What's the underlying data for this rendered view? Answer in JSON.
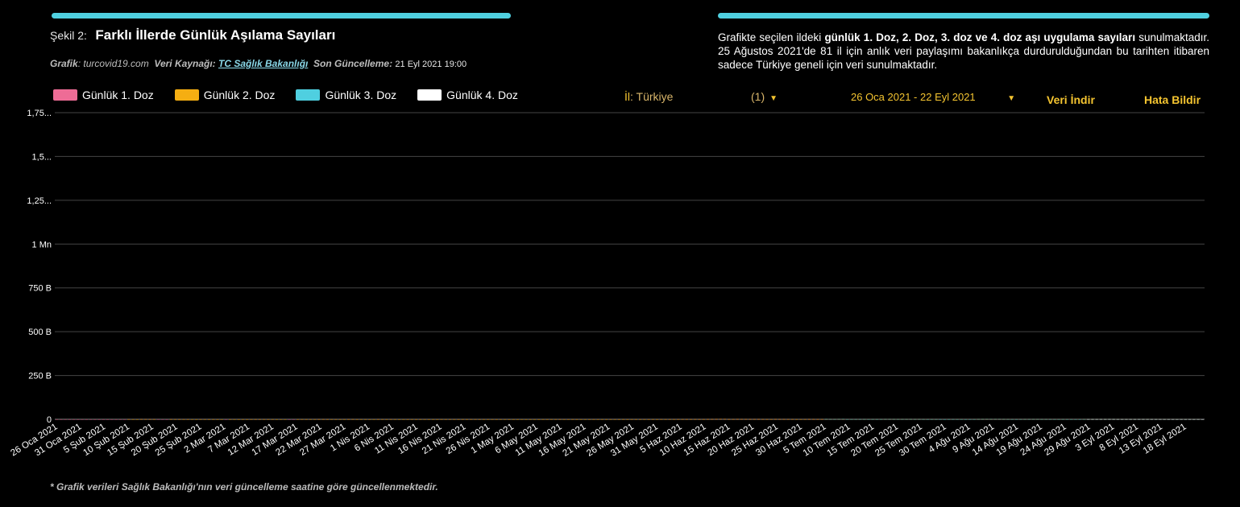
{
  "header": {
    "fig_no": "Şekil 2:",
    "title": "Farklı İllerde  Günlük Aşılama  Sayıları",
    "meta_graph_label": "Grafik",
    "meta_graph_value": ": turcovid19.com",
    "meta_source_label": "Veri Kaynağı:",
    "meta_source_link": "TC Sağlık Bakanlığı",
    "meta_update_label": "Son Güncelleme:",
    "meta_update_value": "21 Eyl 2021 19:00"
  },
  "description": {
    "part1": "Grafikte seçilen ildeki ",
    "bold": "günlük 1. Doz, 2. Doz, 3. doz ve 4. doz aşı uygulama sayıları",
    "part2": " sunulmaktadır.  25 Ağustos 2021'de 81 il için anlık veri paylaşımı bakanlıkça durdurulduğundan bu tarihten  itibaren sadece Türkiye geneli için veri sunulmaktadır."
  },
  "legend": [
    {
      "label": "Günlük 1. Doz",
      "color": "#ee6c96"
    },
    {
      "label": "Günlük 2. Doz",
      "color": "#f5ae12"
    },
    {
      "label": "Günlük 3. Doz",
      "color": "#4fcfe0"
    },
    {
      "label": "Günlük 4. Doz",
      "color": "#ffffff"
    }
  ],
  "controls": {
    "il_label": "İl",
    "il_value": ": Türkiye",
    "count": "(1)",
    "date_range": "26 Oca 2021 - 22 Eyl 2021",
    "download": "Veri İndir",
    "report": "Hata Bildir"
  },
  "footnote": "* Grafik verileri Sağlık Bakanlığı'nın veri güncelleme saatine  göre güncellenmektedir.",
  "chart_data": {
    "type": "bar",
    "stacked": true,
    "y_ticks": [
      "0",
      "250 B",
      "500 B",
      "750 B",
      "1 Mn",
      "1,25...",
      "1,5...",
      "1,75..."
    ],
    "ylim": [
      0,
      1750000
    ],
    "grid": true,
    "x_ticks": [
      "26 Oca 2021",
      "31 Oca 2021",
      "5 Şub 2021",
      "10 Şub 2021",
      "15 Şub 2021",
      "20 Şub 2021",
      "25 Şub 2021",
      "2 Mar 2021",
      "7 Mar 2021",
      "12 Mar 2021",
      "17 Mar 2021",
      "22 Mar 2021",
      "27 Mar 2021",
      "1 Nis 2021",
      "6 Nis 2021",
      "11 Nis 2021",
      "16 Nis 2021",
      "21 Nis 2021",
      "26 Nis 2021",
      "1 May 2021",
      "6 May 2021",
      "11 May 2021",
      "16 May 2021",
      "21 May 2021",
      "26 May 2021",
      "31 May 2021",
      "5 Haz 2021",
      "10 Haz 2021",
      "15 Haz 2021",
      "20 Haz 2021",
      "25 Haz 2021",
      "30 Haz 2021",
      "5 Tem 2021",
      "10 Tem 2021",
      "15 Tem 2021",
      "20 Tem 2021",
      "25 Tem 2021",
      "30 Tem 2021",
      "4 Ağu 2021",
      "9 Ağu 2021",
      "14 Ağu 2021",
      "19 Ağu 2021",
      "24 Ağu 2021",
      "29 Ağu 2021",
      "3 Eyl 2021",
      "8 Eyl 2021",
      "13 Eyl 2021",
      "18 Eyl 2021"
    ],
    "series": [
      {
        "name": "Günlük 1. Doz",
        "values": [
          100,
          110,
          170,
          230,
          30,
          20,
          150,
          140,
          115,
          95,
          85,
          10,
          5,
          75,
          60,
          50,
          70,
          300,
          110,
          90,
          560,
          540,
          470,
          410,
          360,
          30,
          20,
          420,
          290,
          270,
          190,
          180,
          40,
          20,
          170,
          140,
          115,
          100,
          90,
          30,
          20,
          100,
          70,
          60,
          50,
          40,
          30,
          30,
          20,
          15,
          10,
          5,
          40,
          30,
          20,
          15,
          10,
          35,
          30,
          30,
          20,
          20,
          320,
          340,
          300,
          160,
          170,
          60,
          120,
          300,
          370,
          180,
          160,
          150,
          60,
          40,
          390,
          220,
          170,
          330,
          180,
          40,
          30,
          180,
          160,
          170,
          160,
          130,
          100,
          60,
          140,
          120,
          100,
          70,
          80,
          120,
          140,
          110,
          100,
          100,
          70,
          70,
          60,
          130,
          110,
          100,
          50,
          30,
          40,
          60,
          30,
          50,
          60,
          40,
          40,
          30,
          60,
          50,
          80,
          280,
          120,
          120,
          180,
          180,
          70,
          60,
          80,
          100,
          100,
          90,
          90,
          80,
          80,
          60,
          80,
          130,
          140,
          160,
          180,
          170,
          200,
          160,
          150,
          300,
          280,
          280,
          300,
          380,
          380,
          500,
          380,
          380,
          400,
          380,
          770,
          820,
          1320,
          1450,
          1410,
          550,
          520,
          1080,
          880,
          850,
          800,
          750,
          930,
          400,
          380,
          340,
          980,
          650,
          610,
          490,
          460,
          170,
          130,
          300,
          500,
          420,
          310,
          300,
          290,
          290,
          270,
          250,
          280,
          110,
          230,
          200,
          90,
          80,
          70,
          40,
          30,
          110,
          110,
          100,
          90,
          100,
          120,
          140,
          230,
          220,
          240,
          300,
          320,
          340,
          300,
          60,
          40,
          110,
          160,
          90,
          80,
          80,
          140,
          90,
          90,
          140,
          410,
          400,
          390,
          370,
          380,
          400,
          160,
          140,
          320,
          350,
          290,
          270,
          290,
          260,
          380,
          340,
          320,
          300,
          280,
          180,
          160,
          160,
          130,
          350,
          340,
          300,
          280,
          300,
          280,
          350,
          330,
          290,
          300,
          380,
          360,
          350,
          280,
          280,
          300,
          250,
          250,
          200,
          260,
          200,
          150,
          160,
          180,
          150,
          130,
          70,
          140,
          120
        ]
      },
      {
        "name": "Günlük 2. Doz",
        "values": [
          0,
          0,
          0,
          0,
          0,
          0,
          0,
          0,
          0,
          0,
          0,
          0,
          0,
          0,
          0,
          0,
          0,
          250,
          50,
          20,
          120,
          40,
          50,
          50,
          0,
          0,
          0,
          60,
          80,
          70,
          100,
          190,
          20,
          20,
          100,
          120,
          120,
          110,
          110,
          20,
          0,
          100,
          70,
          70,
          80,
          80,
          280,
          440,
          420,
          400,
          360,
          330,
          10,
          10,
          10,
          0,
          0,
          380,
          360,
          350,
          300,
          290,
          160,
          100,
          160,
          60,
          60,
          60,
          100,
          100,
          90,
          80,
          60,
          60,
          10,
          10,
          40,
          30,
          20,
          10,
          10,
          10,
          10,
          40,
          50,
          40,
          50,
          60,
          60,
          40,
          60,
          230,
          250,
          270,
          220,
          200,
          120,
          250,
          300,
          310,
          260,
          200,
          200,
          60,
          90,
          80,
          90,
          50,
          40,
          60,
          80,
          60,
          60,
          40,
          50,
          100,
          260,
          330,
          340,
          200,
          60,
          60,
          40,
          50,
          50,
          50,
          50,
          70,
          80,
          140,
          170,
          180,
          110,
          190,
          220,
          150,
          160,
          170,
          60,
          70,
          80,
          150,
          110,
          100,
          100,
          80,
          90,
          100,
          60,
          60,
          80,
          300,
          100,
          90,
          120,
          120,
          90,
          170,
          220,
          120,
          140,
          140,
          100,
          100,
          80,
          60,
          110,
          260,
          200,
          110,
          100,
          180,
          230,
          190,
          100,
          220,
          230,
          140,
          380,
          420,
          440,
          450,
          530,
          600,
          470,
          790,
          760,
          130,
          60,
          80,
          200,
          430,
          420,
          450,
          470,
          360,
          760,
          830,
          800,
          640,
          660,
          700,
          710,
          650,
          590,
          250,
          150,
          100,
          100,
          50,
          40,
          160,
          170,
          360,
          390,
          240,
          120,
          330,
          860,
          820,
          840,
          720,
          720,
          690,
          550,
          330,
          300,
          280,
          300,
          400,
          380,
          490,
          470,
          320,
          320,
          210,
          160,
          220,
          270,
          290,
          270,
          180,
          170,
          240,
          210,
          260,
          300,
          380,
          400,
          410,
          420,
          300,
          220,
          230,
          220,
          200,
          280,
          340,
          300,
          270,
          270,
          280,
          200,
          190,
          200,
          170,
          220,
          240,
          240,
          250,
          280
        ]
      },
      {
        "name": "Günlük 3. Doz",
        "values": [
          0,
          0,
          0,
          0,
          0,
          0,
          0,
          0,
          0,
          0,
          0,
          0,
          0,
          0,
          0,
          0,
          0,
          0,
          0,
          0,
          0,
          0,
          0,
          0,
          0,
          0,
          0,
          0,
          0,
          0,
          0,
          0,
          0,
          0,
          0,
          0,
          0,
          0,
          0,
          0,
          0,
          0,
          0,
          0,
          0,
          0,
          0,
          0,
          0,
          0,
          0,
          0,
          0,
          0,
          0,
          0,
          0,
          0,
          0,
          0,
          0,
          0,
          0,
          0,
          0,
          0,
          0,
          0,
          0,
          0,
          0,
          0,
          0,
          0,
          0,
          0,
          0,
          0,
          0,
          0,
          0,
          0,
          0,
          0,
          0,
          0,
          0,
          0,
          0,
          0,
          0,
          0,
          0,
          0,
          0,
          0,
          0,
          0,
          0,
          0,
          0,
          0,
          0,
          0,
          0,
          0,
          0,
          0,
          0,
          0,
          0,
          0,
          0,
          0,
          0,
          0,
          0,
          0,
          0,
          0,
          0,
          0,
          0,
          0,
          0,
          0,
          0,
          0,
          0,
          0,
          0,
          0,
          0,
          0,
          0,
          0,
          0,
          0,
          0,
          0,
          0,
          0,
          0,
          0,
          0,
          0,
          0,
          0,
          0,
          0,
          0,
          0,
          0,
          0,
          0,
          0,
          0,
          0,
          0,
          0,
          0,
          0,
          0,
          0,
          0,
          0,
          0,
          0,
          0,
          0,
          0,
          0,
          0,
          0,
          0,
          0,
          0,
          0,
          0,
          0,
          0,
          0,
          490,
          40,
          60,
          90,
          380,
          280,
          300,
          380,
          380,
          300,
          20,
          160,
          120,
          180,
          90,
          30,
          20,
          20,
          10,
          20,
          10,
          20,
          20,
          30,
          30,
          170,
          180,
          200,
          160,
          190,
          150,
          20,
          10,
          50,
          120,
          60,
          40,
          50,
          50,
          100,
          100,
          150,
          120,
          60,
          40,
          40,
          40,
          60,
          100,
          90,
          180,
          160,
          100,
          60,
          80,
          60,
          40,
          40,
          50,
          50,
          60,
          80,
          70,
          80,
          80,
          60,
          30,
          20,
          30,
          30,
          20,
          30,
          40,
          40,
          60,
          50,
          60,
          40,
          50,
          40,
          60,
          60,
          40,
          40,
          40,
          60,
          60,
          40,
          30,
          40,
          50
        ]
      },
      {
        "name": "Günlük 4. Doz",
        "values": [
          0,
          0,
          0,
          0,
          0,
          0,
          0,
          0,
          0,
          0,
          0,
          0,
          0,
          0,
          0,
          0,
          0,
          0,
          0,
          0,
          0,
          0,
          0,
          0,
          0,
          0,
          0,
          0,
          0,
          0,
          0,
          0,
          0,
          0,
          0,
          0,
          0,
          0,
          0,
          0,
          0,
          0,
          0,
          0,
          0,
          0,
          0,
          0,
          0,
          0,
          0,
          0,
          0,
          0,
          0,
          0,
          0,
          0,
          0,
          0,
          0,
          0,
          0,
          0,
          0,
          0,
          0,
          0,
          0,
          0,
          0,
          0,
          0,
          0,
          0,
          0,
          0,
          0,
          0,
          0,
          0,
          0,
          0,
          0,
          0,
          0,
          0,
          0,
          0,
          0,
          0,
          0,
          0,
          0,
          0,
          0,
          0,
          0,
          0,
          0,
          0,
          0,
          0,
          0,
          0,
          0,
          0,
          0,
          0,
          0,
          0,
          0,
          0,
          0,
          0,
          0,
          0,
          0,
          0,
          0,
          0,
          0,
          0,
          0,
          0,
          0,
          0,
          0,
          0,
          0,
          0,
          0,
          0,
          0,
          0,
          0,
          0,
          0,
          0,
          0,
          0,
          0,
          0,
          0,
          0,
          0,
          0,
          0,
          0,
          0,
          0,
          0,
          0,
          0,
          0,
          0,
          0,
          0,
          0,
          0,
          0,
          0,
          0,
          0,
          0,
          0,
          0,
          0,
          0,
          0,
          0,
          0,
          0,
          0,
          0,
          0,
          0,
          0,
          0,
          0,
          0,
          0,
          0,
          0,
          0,
          0,
          0,
          0,
          0,
          0,
          0,
          0,
          0,
          0,
          0,
          0,
          0,
          0,
          0,
          0,
          0,
          0,
          0,
          0,
          0,
          0,
          0,
          0,
          0,
          0,
          0,
          0,
          0,
          0,
          0,
          0,
          0,
          0,
          0,
          0,
          0,
          0,
          0,
          0,
          0,
          0,
          0,
          0,
          0,
          0,
          0,
          0,
          0,
          0,
          0,
          0,
          0,
          0,
          0,
          0,
          0,
          0,
          0,
          0,
          10,
          10,
          10,
          10,
          10,
          10,
          10,
          10,
          10,
          10,
          10,
          10,
          10,
          10,
          10,
          10,
          10,
          15,
          15,
          15,
          15,
          15,
          15,
          20,
          20,
          20,
          20,
          20,
          20,
          20,
          20,
          20,
          20,
          20,
          20,
          20,
          20,
          20,
          20,
          20,
          20,
          20,
          20,
          15
        ]
      }
    ]
  }
}
